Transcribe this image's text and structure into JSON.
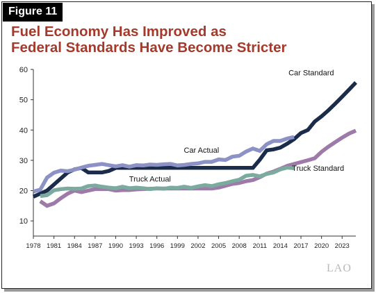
{
  "figure_label": "Figure 11",
  "title_lines": [
    "Fuel Economy Has Improved as",
    "Federal Standards Have Become Stricter"
  ],
  "logo": "LAO",
  "chart_data": {
    "type": "line",
    "xlabel": "",
    "ylabel": "",
    "xlim": [
      1978,
      2025
    ],
    "ylim": [
      5,
      60
    ],
    "y_ticks": [
      10,
      20,
      30,
      40,
      50,
      60
    ],
    "x_ticks": [
      1978,
      1981,
      1984,
      1987,
      1990,
      1993,
      1996,
      1999,
      2002,
      2005,
      2008,
      2011,
      2014,
      2017,
      2020,
      2023
    ],
    "grid": false,
    "series": [
      {
        "name": "Car Standard",
        "color": "#1b2b4a",
        "x": [
          1978,
          1979,
          1980,
          1981,
          1982,
          1983,
          1984,
          1985,
          1986,
          1987,
          1988,
          1989,
          1990,
          1991,
          1992,
          1993,
          1994,
          1995,
          1996,
          1997,
          1998,
          1999,
          2000,
          2001,
          2002,
          2003,
          2004,
          2005,
          2006,
          2007,
          2008,
          2009,
          2010,
          2011,
          2012,
          2013,
          2014,
          2015,
          2016,
          2017,
          2018,
          2019,
          2020,
          2021,
          2022,
          2023,
          2024,
          2025
        ],
        "values": [
          18,
          19,
          20,
          22,
          24,
          26,
          27,
          27.5,
          26,
          26,
          26,
          26.5,
          27.5,
          27.5,
          27.5,
          27.5,
          27.5,
          27.5,
          27.5,
          27.5,
          27.5,
          27.5,
          27.5,
          27.5,
          27.5,
          27.5,
          27.5,
          27.5,
          27.5,
          27.5,
          27.5,
          27.5,
          27.5,
          30.2,
          33.3,
          33.6,
          34.2,
          35.5,
          37,
          39,
          40,
          42.8,
          44.5,
          46.5,
          48.7,
          51,
          53.3,
          55.7
        ]
      },
      {
        "name": "Car Actual",
        "color": "#8c91c6",
        "x": [
          1978,
          1979,
          1980,
          1981,
          1982,
          1983,
          1984,
          1985,
          1986,
          1987,
          1988,
          1989,
          1990,
          1991,
          1992,
          1993,
          1994,
          1995,
          1996,
          1997,
          1998,
          1999,
          2000,
          2001,
          2002,
          2003,
          2004,
          2005,
          2006,
          2007,
          2008,
          2009,
          2010,
          2011,
          2012,
          2013,
          2014,
          2015,
          2016
        ],
        "values": [
          19.7,
          20.3,
          24.3,
          25.9,
          26.6,
          26.4,
          26.9,
          27.6,
          28.2,
          28.5,
          28.8,
          28.4,
          28,
          28.4,
          27.9,
          28.4,
          28.3,
          28.6,
          28.5,
          28.7,
          28.8,
          28.3,
          28.5,
          28.8,
          29,
          29.5,
          29.5,
          30.3,
          30.1,
          31.2,
          31.5,
          32.9,
          33.9,
          33.1,
          35.3,
          36.4,
          36.4,
          37.2,
          37.7
        ]
      },
      {
        "name": "Truck Standard",
        "color": "#9e7aa8",
        "x": [
          1979,
          1980,
          1981,
          1982,
          1983,
          1984,
          1985,
          1986,
          1987,
          1988,
          1989,
          1990,
          1991,
          1992,
          1993,
          1994,
          1995,
          1996,
          1997,
          1998,
          1999,
          2000,
          2001,
          2002,
          2003,
          2004,
          2005,
          2006,
          2007,
          2008,
          2009,
          2010,
          2011,
          2012,
          2013,
          2014,
          2015,
          2016,
          2017,
          2018,
          2019,
          2020,
          2021,
          2022,
          2023,
          2024,
          2025
        ],
        "values": [
          16.5,
          15,
          15.8,
          17.5,
          19,
          20,
          19.5,
          20,
          20.5,
          20.5,
          20.5,
          20,
          20.2,
          20.2,
          20.4,
          20.5,
          20.6,
          20.7,
          20.7,
          20.7,
          20.7,
          20.7,
          20.7,
          20.7,
          20.7,
          20.7,
          21,
          21.6,
          22.2,
          22.5,
          23.1,
          23.5,
          24.4,
          25.6,
          26.3,
          27.2,
          28.2,
          28.8,
          29.4,
          30,
          30.7,
          32.8,
          34.5,
          36,
          37.5,
          38.8,
          39.8
        ]
      },
      {
        "name": "Truck Actual",
        "color": "#7aab9e",
        "x": [
          1979,
          1980,
          1981,
          1982,
          1983,
          1984,
          1985,
          1986,
          1987,
          1988,
          1989,
          1990,
          1991,
          1992,
          1993,
          1994,
          1995,
          1996,
          1997,
          1998,
          1999,
          2000,
          2001,
          2002,
          2003,
          2004,
          2005,
          2006,
          2007,
          2008,
          2009,
          2010,
          2011,
          2012,
          2013,
          2014,
          2015,
          2016
        ],
        "values": [
          18.2,
          18.5,
          20.1,
          20.5,
          20.7,
          20.6,
          20.7,
          21.5,
          21.7,
          21.3,
          21,
          20.8,
          21.3,
          20.8,
          21,
          20.8,
          20.5,
          20.8,
          20.6,
          21,
          20.9,
          21.3,
          20.9,
          21.4,
          21.8,
          21.5,
          22.1,
          22.5,
          23.1,
          23.6,
          24.9,
          25.2,
          24.7,
          25.5,
          26,
          27,
          27.6,
          27.4
        ]
      }
    ],
    "annotations": [
      {
        "text": "Car Standard",
        "x": 2018.5,
        "y": 58
      },
      {
        "text": "Car Actual",
        "x": 2002.5,
        "y": 32.5
      },
      {
        "text": "Truck Standard",
        "x": 2019.5,
        "y": 26.5
      },
      {
        "text": "Truck Actual",
        "x": 1995,
        "y": 23
      }
    ]
  }
}
